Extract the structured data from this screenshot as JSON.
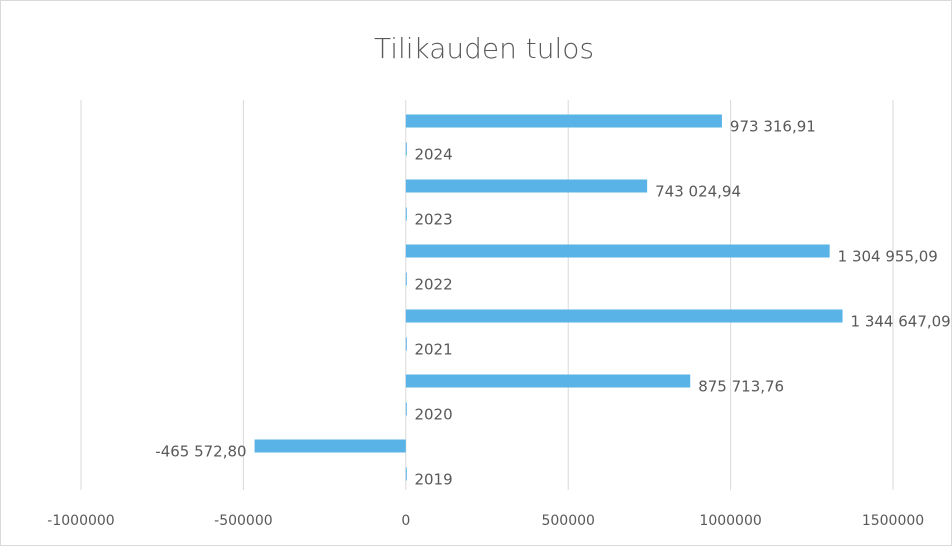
{
  "chart_data": {
    "type": "bar",
    "orientation": "horizontal",
    "title": "Tilikauden tulos",
    "series": [
      {
        "color": "#5ab3e6",
        "values": [
          -465572.8,
          875713.76,
          1344647.09,
          1304955.09,
          743024.94,
          973316.91
        ],
        "value_labels": [
          "-465 572,80",
          "875 713,76",
          "1 344 647,09",
          "1 304 955,09",
          "743 024,94",
          "973 316,91"
        ]
      },
      {
        "color": "#5ab3e6",
        "values": [
          2019,
          2020,
          2021,
          2022,
          2023,
          2024
        ]
      }
    ],
    "xlim": [
      -1000000,
      1500000
    ],
    "xticks": [
      -1000000,
      -500000,
      0,
      500000,
      1000000,
      1500000
    ],
    "grid": true
  }
}
